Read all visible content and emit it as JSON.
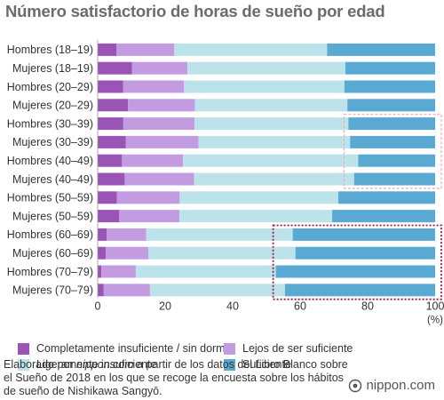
{
  "title": "Número satisfactorio de horas de sueño por edad",
  "colors": {
    "completamente": "#9a54b6",
    "lejos": "#c39be0",
    "ligeramente": "#bde3ea",
    "suficiente": "#5aa9d3",
    "highlight_light": "#f2a7b6",
    "highlight_dark": "#9b1c4a",
    "axis_text": "#333333"
  },
  "legend": [
    {
      "label": "Completamente insuficiente / sin dormir",
      "color": "#9a54b6"
    },
    {
      "label": "Lejos de ser suficiente",
      "color": "#c39be0"
    },
    {
      "label": "Ligeramente insuficiente",
      "color": "#bde3ea"
    },
    {
      "label": "Suficiente",
      "color": "#5aa9d3"
    }
  ],
  "note_prefix": "Elaborado por ",
  "note_source": "nippon.com",
  "note_rest": " a partir de los datos del Libro Blanco sobre el Sueño de 2018 en los que se recoge la encuesta sobre los hábitos de sueño de Nishikawa Sangyō.",
  "logo_text": "nippon.com",
  "logo_icon": "nippon-logo-icon",
  "chart_data": {
    "type": "bar",
    "orientation": "horizontal",
    "stacked": true,
    "title": "Número satisfactorio de horas de sueño por edad",
    "xlabel": "(%)",
    "xlim": [
      0,
      100
    ],
    "xticks": [
      0,
      20,
      40,
      60,
      80,
      100
    ],
    "categories": [
      "Hombres (18–19)",
      "Mujeres (18–19)",
      "Hombres (20–29)",
      "Mujeres (20–29)",
      "Hombres (30–39)",
      "Mujeres (30–39)",
      "Hombres (40–49)",
      "Mujeres (40–49)",
      "Hombres (50–59)",
      "Mujeres (50–59)",
      "Hombres (60–69)",
      "Mujeres (60–69)",
      "Hombres (70–79)",
      "Mujeres (70–79)"
    ],
    "series": [
      {
        "name": "Completamente insuficiente / sin dormir",
        "color": "#9a54b6",
        "values": [
          5.6,
          10.2,
          7.5,
          9.0,
          7.6,
          8.3,
          7.2,
          8.0,
          5.7,
          6.4,
          2.7,
          2.4,
          1.1,
          1.8
        ]
      },
      {
        "name": "Lejos de ser suficiente",
        "color": "#c39be0",
        "values": [
          17.1,
          16.4,
          18.1,
          19.8,
          21.1,
          21.6,
          18.1,
          20.6,
          18.6,
          17.8,
          11.7,
          12.6,
          10.2,
          13.7
        ]
      },
      {
        "name": "Ligeramente insuficiente",
        "color": "#bde3ea",
        "values": [
          45.3,
          46.8,
          47.5,
          45.2,
          45.6,
          44.9,
          51.9,
          47.4,
          47.0,
          45.3,
          43.4,
          43.6,
          41.5,
          40.0
        ]
      },
      {
        "name": "Suficiente",
        "color": "#5aa9d3",
        "values": [
          32.0,
          26.6,
          26.9,
          26.0,
          25.7,
          25.2,
          22.8,
          24.0,
          28.7,
          30.5,
          42.2,
          41.4,
          47.2,
          44.5
        ]
      }
    ],
    "highlights": [
      {
        "style": "dashed-light",
        "rows": [
          4,
          7
        ],
        "x_range": [
          73,
          102
        ]
      },
      {
        "style": "dotted-dark",
        "rows": [
          10,
          13
        ],
        "x_range": [
          52,
          102
        ]
      }
    ]
  }
}
